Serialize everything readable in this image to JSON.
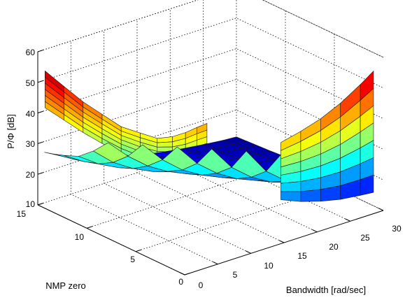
{
  "chart_data": {
    "type": "surface",
    "title": "",
    "xlabel": "Bandwidth [rad/sec]",
    "ylabel": "NMP zero",
    "zlabel": "P/Φ [dB]",
    "xlim": [
      0,
      30
    ],
    "ylim": [
      0,
      15
    ],
    "zlim": [
      10,
      60
    ],
    "xticks": [
      0,
      5,
      10,
      15,
      20,
      25,
      30
    ],
    "yticks": [
      0,
      5,
      10,
      15
    ],
    "zticks": [
      10,
      20,
      30,
      40,
      50,
      60
    ],
    "xtick_labels": [
      "0",
      "5",
      "10",
      "15",
      "20",
      "25",
      "30"
    ],
    "ytick_labels": [
      "0",
      "5",
      "10",
      "15"
    ],
    "ztick_labels": [
      "10",
      "20",
      "30",
      "40",
      "50",
      "60"
    ],
    "colormap": "jet",
    "grid": true,
    "bandwidth_samples": [
      1,
      4,
      7,
      10,
      13,
      16,
      19,
      22,
      25,
      28,
      30
    ],
    "nmp_zero_samples": [
      1,
      2.5,
      4,
      5.5,
      7,
      8.5,
      10,
      11.5,
      13,
      14,
      15
    ],
    "z_db": [
      [
        null,
        null,
        null,
        null,
        null,
        36.5,
        27.0,
        23.6,
        21.6,
        20.8,
        20.3
      ],
      [
        null,
        null,
        null,
        null,
        37.5,
        28.8,
        23.6,
        20.8,
        18.8,
        17.9,
        17.4
      ],
      [
        null,
        null,
        null,
        38.0,
        29.9,
        24.6,
        20.9,
        18.6,
        16.9,
        16.0,
        15.6
      ],
      [
        null,
        null,
        38.5,
        31.0,
        25.7,
        21.8,
        19.1,
        17.1,
        15.6,
        14.8,
        14.4
      ],
      [
        null,
        39.0,
        32.0,
        26.6,
        22.8,
        19.9,
        17.7,
        15.9,
        14.6,
        13.9,
        13.5
      ],
      [
        39.5,
        33.0,
        27.7,
        23.8,
        20.9,
        18.5,
        16.6,
        15.1,
        13.9,
        13.2,
        12.8
      ],
      [
        34.5,
        28.7,
        24.6,
        21.5,
        19.3,
        17.3,
        15.7,
        14.4,
        13.3,
        12.6,
        12.3
      ],
      [
        30.5,
        25.9,
        22.6,
        20.1,
        18.2,
        16.5,
        15.1,
        13.9,
        12.9,
        12.2,
        11.9
      ],
      [
        28.5,
        24.4,
        21.4,
        19.2,
        17.5,
        15.9,
        14.6,
        13.5,
        12.6,
        11.9,
        11.6
      ],
      [
        27.4,
        23.6,
        20.8,
        18.8,
        17.1,
        15.6,
        14.3,
        13.3,
        12.4,
        11.7,
        11.4
      ],
      [
        26.5,
        22.9,
        20.3,
        18.3,
        16.7,
        15.2,
        14.0,
        13.0,
        12.2,
        11.5,
        11.2
      ]
    ],
    "left_wing_z_db": [
      54.0,
      50.0,
      46.0,
      43.0,
      40.0,
      39.0,
      38.0,
      39.0,
      40.5,
      42.0,
      43.0
    ],
    "left_wing_z_db_low": [
      42.0,
      39.0,
      36.0,
      33.5,
      31.5,
      30.0,
      29.5,
      29.0,
      29.0,
      29.5,
      30.0
    ]
  }
}
